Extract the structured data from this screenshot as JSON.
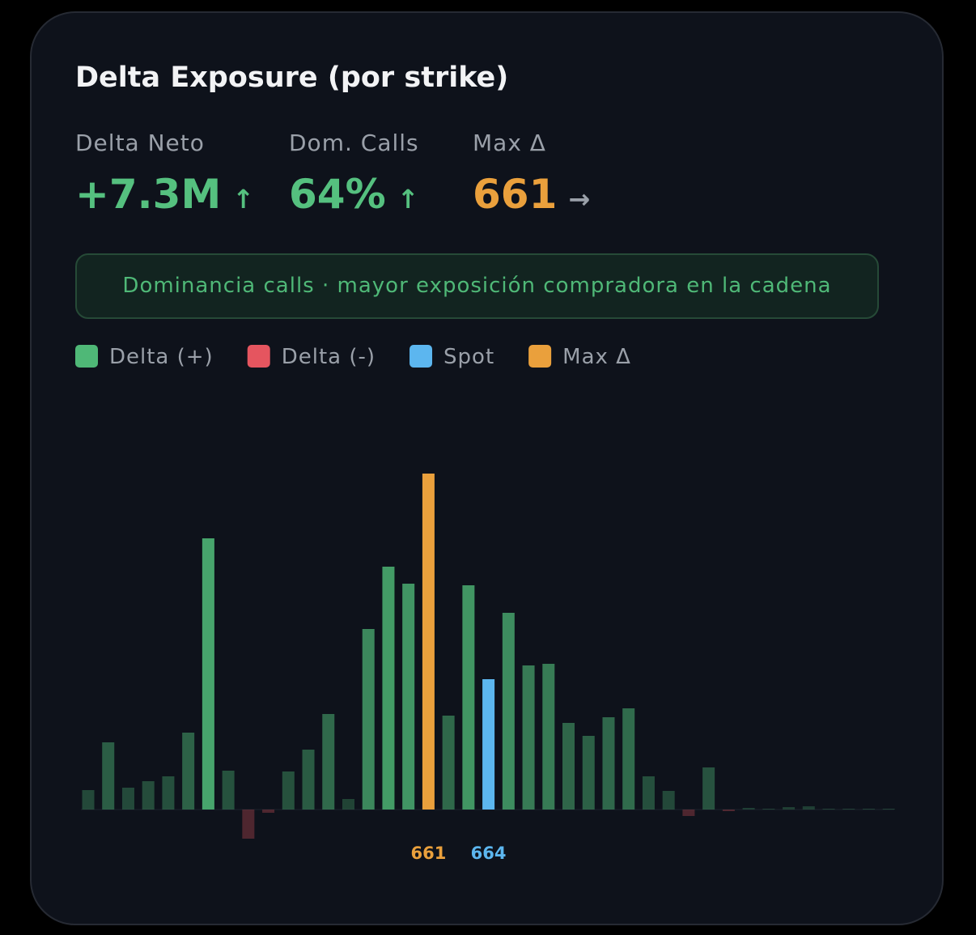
{
  "title": "Delta Exposure (por strike)",
  "stats": [
    {
      "label": "Delta Neto",
      "value": "+7.3M",
      "arrow": "↑",
      "color": "#55c07f"
    },
    {
      "label": "Dom. Calls",
      "value": "64%",
      "arrow": "↑",
      "color": "#55c07f"
    },
    {
      "label": "Max Δ",
      "value": "661",
      "arrow": "→",
      "color": "#eaa03c"
    }
  ],
  "banner": "Dominancia calls · mayor exposición compradora en la cadena",
  "chart_data": {
    "type": "bar",
    "legend": [
      {
        "name": "Delta (+)",
        "color": "#4fb877"
      },
      {
        "name": "Delta (-)",
        "color": "#e5555f"
      },
      {
        "name": "Spot",
        "color": "#5cb6ef"
      },
      {
        "name": "Max Δ",
        "color": "#eaa03c"
      }
    ],
    "spot": 664,
    "max": 661,
    "categories": [
      null,
      null,
      null,
      null,
      null,
      null,
      null,
      null,
      null,
      null,
      null,
      null,
      null,
      null,
      null,
      null,
      null,
      661,
      null,
      null,
      664,
      null,
      null,
      null,
      null,
      null,
      null,
      null,
      null,
      null,
      null,
      null,
      null,
      null,
      null,
      null,
      null,
      null,
      null,
      null,
      null
    ],
    "values": [
      24,
      83,
      27,
      35,
      41,
      95,
      335,
      48,
      -36,
      -4,
      47,
      74,
      118,
      13,
      223,
      300,
      279,
      415,
      116,
      277,
      161,
      243,
      178,
      180,
      107,
      91,
      114,
      125,
      41,
      23,
      -8,
      52,
      -2,
      2,
      1,
      3,
      4,
      1,
      1,
      1,
      1
    ]
  }
}
